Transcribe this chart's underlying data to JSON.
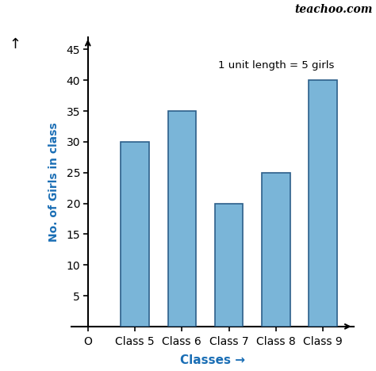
{
  "categories": [
    "Class 5",
    "Class 6",
    "Class 7",
    "Class 8",
    "Class 9"
  ],
  "values": [
    30,
    35,
    20,
    25,
    40
  ],
  "bar_color": "#7ab5d8",
  "bar_edge_color": "#2c5f8a",
  "title": "teachoo.com",
  "annotation": "1 unit length = 5 girls",
  "xlabel": "Classes →",
  "ylabel": "No. of Girls in class",
  "origin_label": "O",
  "ylim": [
    0,
    47
  ],
  "yticks": [
    5,
    10,
    15,
    20,
    25,
    30,
    35,
    40,
    45
  ],
  "xlabel_color": "#1a6eb5",
  "ylabel_color": "#1a6eb5",
  "title_color": "#000000",
  "background_color": "#ffffff",
  "bar_width": 0.6
}
